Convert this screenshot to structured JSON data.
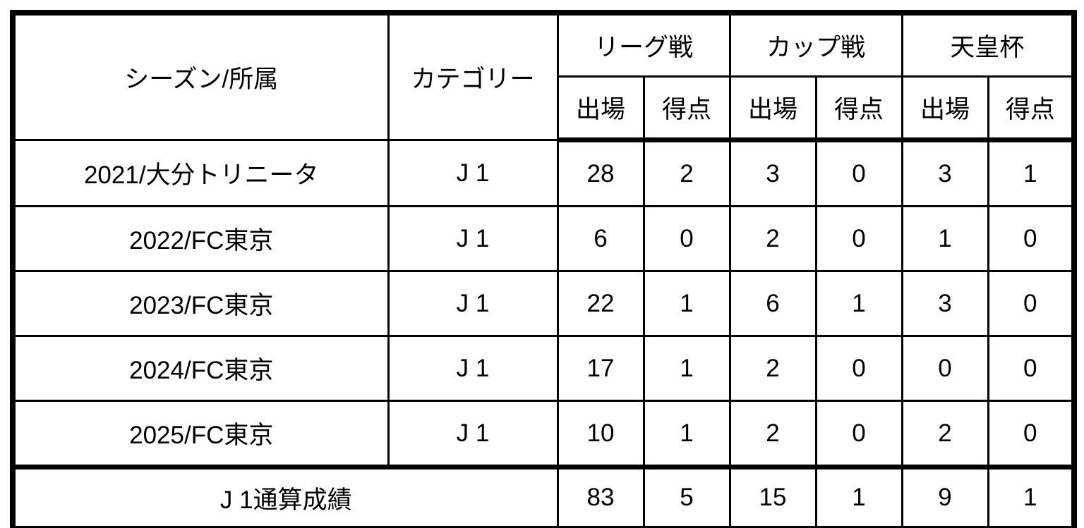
{
  "table": {
    "header": {
      "season_label": "シーズン/所属",
      "category_label": "カテゴリー",
      "groups": [
        {
          "label": "リーグ戦"
        },
        {
          "label": "カップ戦"
        },
        {
          "label": "天皇杯"
        }
      ],
      "sub_labels": [
        "出場",
        "得点",
        "出場",
        "得点",
        "出場",
        "得点"
      ]
    },
    "rows": [
      {
        "season": "2021/大分トリニータ",
        "category": "J 1",
        "stats": [
          "28",
          "2",
          "3",
          "0",
          "3",
          "1"
        ]
      },
      {
        "season": "2022/FC東京",
        "category": "J 1",
        "stats": [
          "6",
          "0",
          "2",
          "0",
          "1",
          "0"
        ]
      },
      {
        "season": "2023/FC東京",
        "category": "J 1",
        "stats": [
          "22",
          "1",
          "6",
          "1",
          "3",
          "0"
        ]
      },
      {
        "season": "2024/FC東京",
        "category": "J 1",
        "stats": [
          "17",
          "1",
          "2",
          "0",
          "0",
          "0"
        ]
      },
      {
        "season": "2025/FC東京",
        "category": "J 1",
        "stats": [
          "10",
          "1",
          "2",
          "0",
          "2",
          "0"
        ]
      }
    ],
    "footer": {
      "label": "J 1通算成績",
      "stats": [
        "83",
        "5",
        "15",
        "1",
        "9",
        "1"
      ]
    },
    "colors": {
      "border": "#000000",
      "background": "#ffffff",
      "text": "#000000"
    }
  }
}
